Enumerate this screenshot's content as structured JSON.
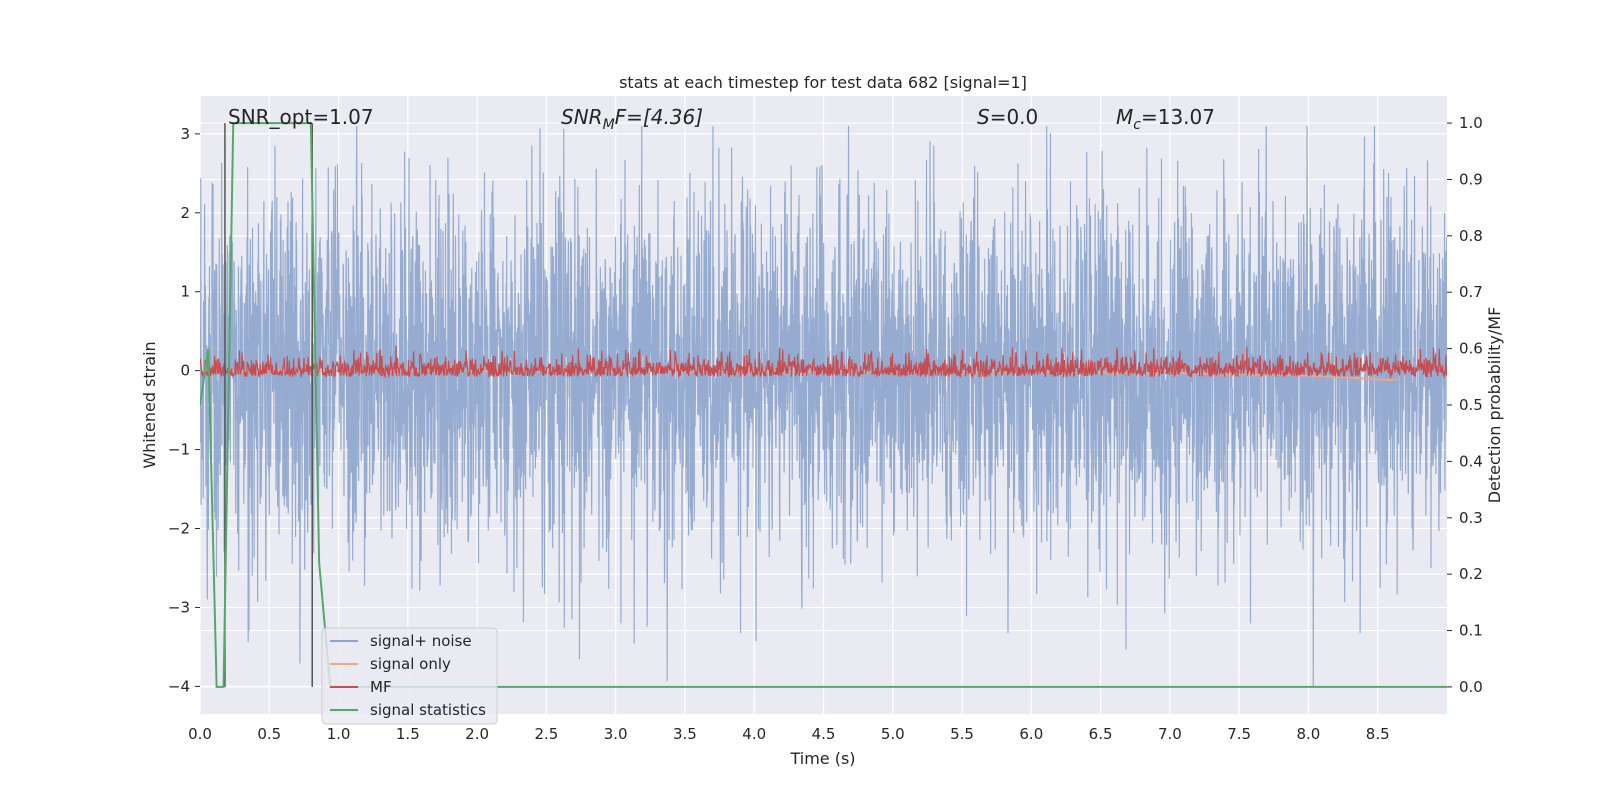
{
  "chart_data": {
    "type": "line",
    "title": "stats at each timestep for test data 682 [signal=1]",
    "xlabel": "Time (s)",
    "ylabel": "Whitened strain",
    "y2label": "Detection probability/MF",
    "xlim": [
      0.0,
      9.0
    ],
    "ylim": [
      -4.35,
      3.48
    ],
    "y2lim": [
      -0.048,
      1.048
    ],
    "xticks": [
      "0.0",
      "0.5",
      "1.0",
      "1.5",
      "2.0",
      "2.5",
      "3.0",
      "3.5",
      "4.0",
      "4.5",
      "5.0",
      "5.5",
      "6.0",
      "6.5",
      "7.0",
      "7.5",
      "8.0",
      "8.5"
    ],
    "yticks": [
      "3",
      "2",
      "1",
      "0",
      "−1",
      "−2",
      "−3",
      "−4"
    ],
    "y2ticks": [
      "1.0",
      "0.9",
      "0.8",
      "0.7",
      "0.6",
      "0.5",
      "0.4",
      "0.3",
      "0.2",
      "0.1",
      "0.0"
    ],
    "grid": true,
    "legend_position": "lower-left",
    "annotations": {
      "snr_opt": "SNR_opt=1.07",
      "snr_mf_sym": "SNR",
      "snr_mf_sub": "M",
      "snr_mf_rest": "F=[4.36]",
      "s_sym": "S",
      "s_rest": "=0.0",
      "mc_sym": "M",
      "mc_sub": "c",
      "mc_rest": "=13.07"
    },
    "vertical_markers": [
      0.18,
      0.81
    ],
    "series": [
      {
        "name": "signal+ noise",
        "color": "#8da4cc",
        "axis": "left",
        "description_values": {
          "amplitude_typical": 1.4,
          "max": 3.1,
          "min": -4.0,
          "n_samples": 4608
        }
      },
      {
        "name": "signal only",
        "color": "#e8a88a",
        "axis": "left",
        "x": [
          0.0,
          1.0,
          2.0,
          3.0,
          4.0,
          5.0,
          6.0,
          7.0,
          8.0,
          8.4,
          8.6,
          8.65
        ],
        "values": [
          0.0,
          0.0,
          0.0,
          0.0,
          -0.01,
          -0.01,
          -0.02,
          -0.03,
          -0.06,
          -0.1,
          -0.12,
          -0.1
        ]
      },
      {
        "name": "MF",
        "color": "#c44e52",
        "axis": "right",
        "description_values": {
          "baseline": 0.55,
          "max": 0.65,
          "min": 0.545
        }
      },
      {
        "name": "signal statistics",
        "color": "#55a868",
        "axis": "right",
        "x": [
          0.0,
          0.06,
          0.12,
          0.17,
          0.24,
          0.25,
          0.5,
          0.8,
          0.86,
          0.94,
          1.0,
          9.0
        ],
        "values": [
          0.5,
          0.6,
          0.0,
          0.0,
          1.0,
          1.0,
          1.0,
          1.0,
          0.22,
          0.0,
          0.0,
          0.0
        ]
      }
    ]
  }
}
